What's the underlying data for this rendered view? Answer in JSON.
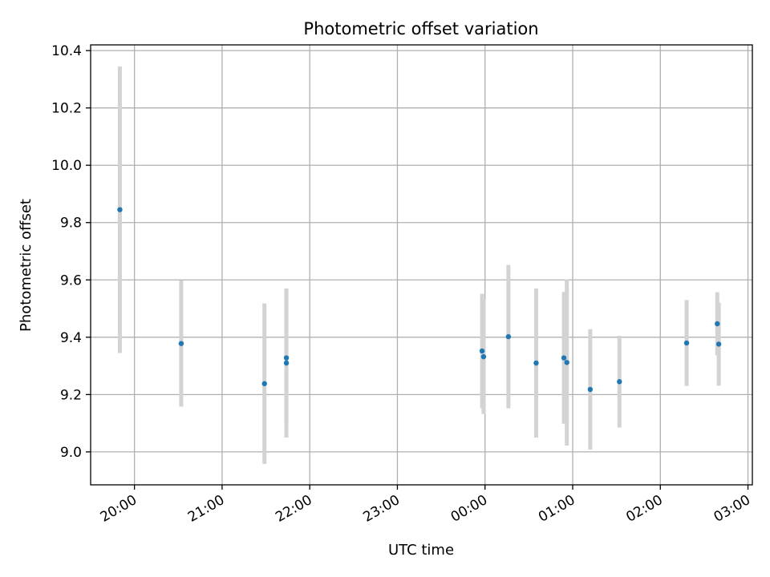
{
  "chart_data": {
    "type": "scatter",
    "title": "Photometric offset variation",
    "xlabel": "UTC time",
    "ylabel": "Photometric offset",
    "x_axis_type": "time",
    "x_start_time": "19:40",
    "x_end_time": "03:02",
    "xlim_hours": [
      19.5,
      27.05
    ],
    "ylim": [
      8.885,
      10.42
    ],
    "x_ticks": [
      {
        "label": "20:00",
        "hours": 20
      },
      {
        "label": "21:00",
        "hours": 21
      },
      {
        "label": "22:00",
        "hours": 22
      },
      {
        "label": "23:00",
        "hours": 23
      },
      {
        "label": "00:00",
        "hours": 24
      },
      {
        "label": "01:00",
        "hours": 25
      },
      {
        "label": "02:00",
        "hours": 26
      },
      {
        "label": "03:00",
        "hours": 27
      }
    ],
    "y_ticks": [
      {
        "label": "9.0",
        "value": 9.0
      },
      {
        "label": "9.2",
        "value": 9.2
      },
      {
        "label": "9.4",
        "value": 9.4
      },
      {
        "label": "9.6",
        "value": 9.6
      },
      {
        "label": "9.8",
        "value": 9.8
      },
      {
        "label": "10.0",
        "value": 10.0
      },
      {
        "label": "10.2",
        "value": 10.2
      },
      {
        "label": "10.4",
        "value": 10.4
      }
    ],
    "grid": true,
    "series": [
      {
        "marker_color": "#1f77b4",
        "errorbar_color": "#d3d3d3",
        "points": [
          {
            "time": "19:50",
            "y": 9.845,
            "yerr": 0.5
          },
          {
            "time": "20:32",
            "y": 9.378,
            "yerr": 0.22
          },
          {
            "time": "21:29",
            "y": 9.238,
            "yerr": 0.28
          },
          {
            "time": "21:44",
            "y": 9.31,
            "yerr": 0.26
          },
          {
            "time": "21:44",
            "y": 9.328,
            "yerr": 0.24
          },
          {
            "time": "23:58",
            "y": 9.352,
            "yerr": 0.2
          },
          {
            "time": "23:59",
            "y": 9.332,
            "yerr": 0.2
          },
          {
            "time": "00:16",
            "y": 9.402,
            "yerr": 0.25
          },
          {
            "time": "00:35",
            "y": 9.31,
            "yerr": 0.26
          },
          {
            "time": "00:54",
            "y": 9.328,
            "yerr": 0.23
          },
          {
            "time": "00:56",
            "y": 9.312,
            "yerr": 0.29
          },
          {
            "time": "01:12",
            "y": 9.218,
            "yerr": 0.21
          },
          {
            "time": "01:32",
            "y": 9.245,
            "yerr": 0.16
          },
          {
            "time": "02:18",
            "y": 9.38,
            "yerr": 0.15
          },
          {
            "time": "02:39",
            "y": 9.447,
            "yerr": 0.11
          },
          {
            "time": "02:40",
            "y": 9.376,
            "yerr": 0.145
          }
        ]
      }
    ]
  }
}
